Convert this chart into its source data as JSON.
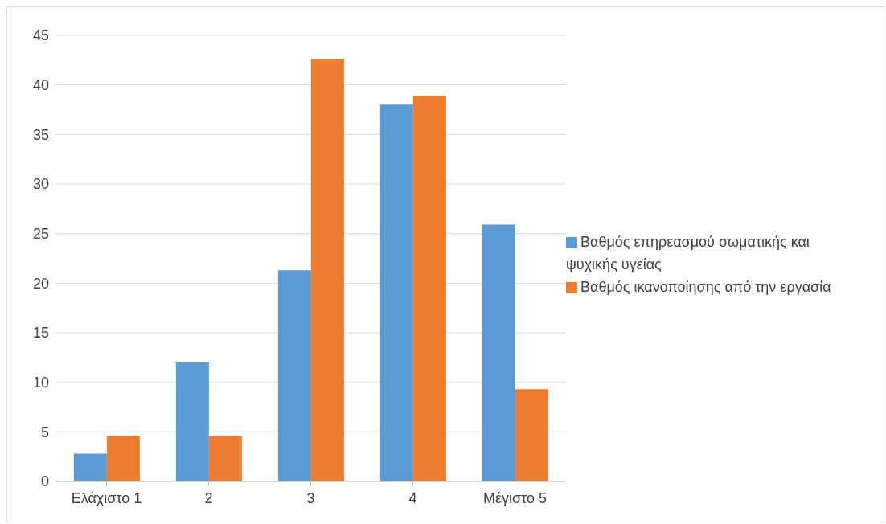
{
  "chart_data": {
    "type": "bar",
    "categories": [
      "Ελάχιστο 1",
      "2",
      "3",
      "4",
      "Μέγιστο 5"
    ],
    "series": [
      {
        "name": "Βαθμός επηρεασμού σωματικής και ψυχικής υγείας",
        "color": "#5b9bd5",
        "values": [
          2.8,
          12.0,
          21.3,
          38.0,
          25.9
        ]
      },
      {
        "name": "Βαθμός ικανοποίησης από την εργασία",
        "color": "#ed7d31",
        "values": [
          4.6,
          4.6,
          42.6,
          38.9,
          9.3
        ]
      }
    ],
    "ylim": [
      0,
      45
    ],
    "yticks": [
      0,
      5,
      10,
      15,
      20,
      25,
      30,
      35,
      40,
      45
    ],
    "grid": "y",
    "legend": "right"
  }
}
